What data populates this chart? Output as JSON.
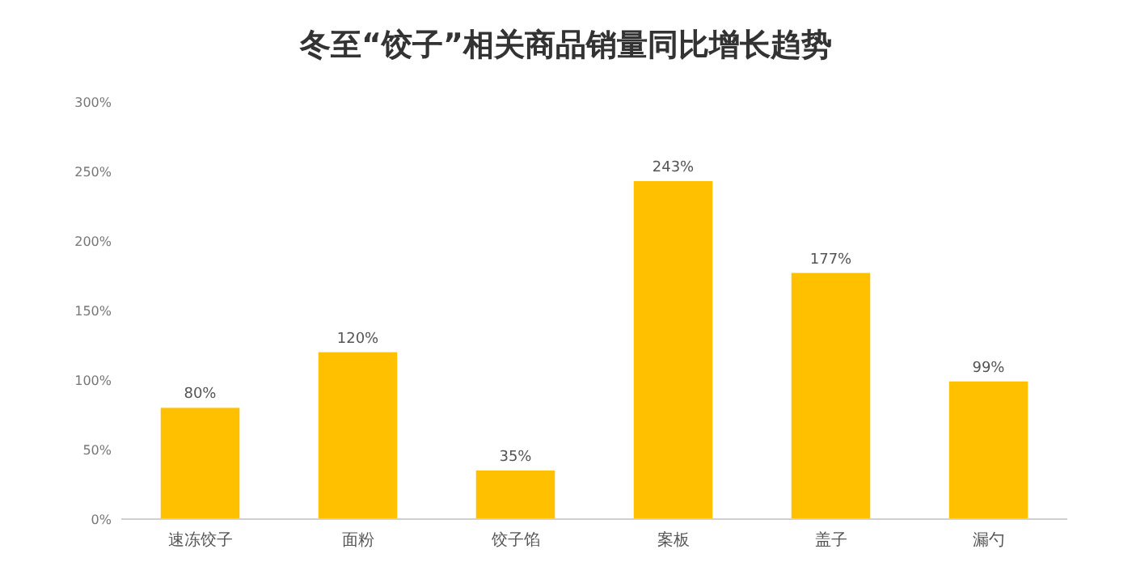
{
  "chart_data": {
    "type": "bar",
    "title": "冬至“饺子”相关商品销量同比增长趋势",
    "categories": [
      "速冻饺子",
      "面粉",
      "饺子馅",
      "案板",
      "盖子",
      "漏勺"
    ],
    "values": [
      80,
      120,
      35,
      243,
      177,
      99
    ],
    "color": "#ffc000",
    "value_labels": [
      "80%",
      "120%",
      "35%",
      "243%",
      "177%",
      "99%"
    ],
    "ylim": [
      0,
      300
    ],
    "yticks": [
      {
        "value": 0,
        "label": "0%"
      },
      {
        "value": 50,
        "label": "50%"
      },
      {
        "value": 100,
        "label": "100%"
      },
      {
        "value": 150,
        "label": "150%"
      },
      {
        "value": 200,
        "label": "200%"
      },
      {
        "value": 250,
        "label": "250%"
      },
      {
        "value": 300,
        "label": "300%"
      }
    ],
    "grid": false
  }
}
